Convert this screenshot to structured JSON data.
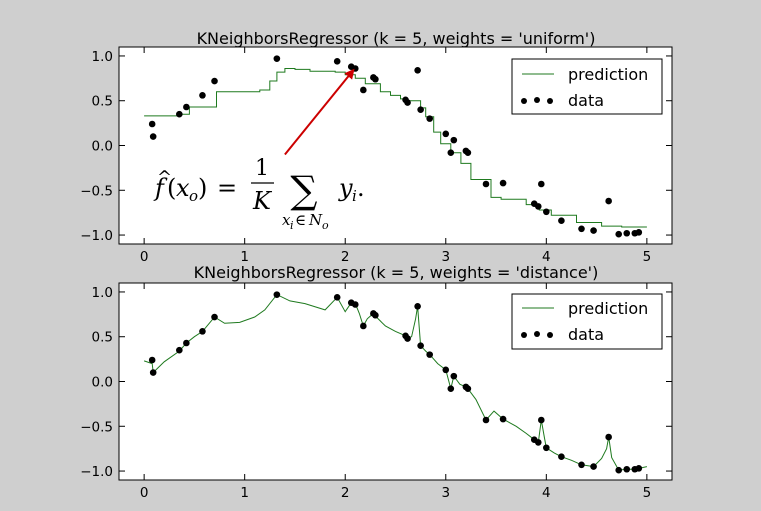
{
  "chart_data": [
    {
      "type": "line",
      "title": "KNeighborsRegressor (k = 5, weights = 'uniform')",
      "xlim": [
        -0.25,
        5.25
      ],
      "ylim": [
        -1.1,
        1.1
      ],
      "xticks": [
        0,
        1,
        2,
        3,
        4,
        5
      ],
      "xtick_labels": [
        "0",
        "1",
        "2",
        "3",
        "4",
        "5"
      ],
      "yticks": [
        1.0,
        0.5,
        0.0,
        -0.5,
        -1.0
      ],
      "ytick_labels": [
        "1.0",
        "0.5",
        "0.0",
        "−0.5",
        "−1.0"
      ],
      "grid": false,
      "legend_position": "top-right",
      "series": [
        {
          "name": "prediction",
          "kind": "step-line",
          "color": "#1f7a1f",
          "x": [
            0.0,
            0.35,
            0.35,
            0.45,
            0.45,
            0.72,
            0.72,
            1.15,
            1.15,
            1.25,
            1.25,
            1.32,
            1.32,
            1.4,
            1.4,
            1.5,
            1.5,
            1.65,
            1.65,
            1.9,
            1.9,
            2.0,
            2.0,
            2.1,
            2.1,
            2.2,
            2.2,
            2.35,
            2.35,
            2.45,
            2.45,
            2.55,
            2.55,
            2.6,
            2.6,
            2.75,
            2.75,
            2.8,
            2.8,
            2.88,
            2.88,
            2.95,
            2.95,
            3.05,
            3.05,
            3.15,
            3.15,
            3.25,
            3.25,
            3.45,
            3.45,
            3.55,
            3.55,
            3.8,
            3.8,
            3.93,
            3.93,
            4.05,
            4.05,
            4.3,
            4.3,
            4.55,
            4.55,
            4.75,
            4.75,
            5.0
          ],
          "y": [
            0.33,
            0.33,
            0.35,
            0.35,
            0.43,
            0.43,
            0.6,
            0.6,
            0.62,
            0.62,
            0.72,
            0.72,
            0.82,
            0.82,
            0.86,
            0.86,
            0.85,
            0.85,
            0.83,
            0.83,
            0.82,
            0.82,
            0.79,
            0.79,
            0.75,
            0.75,
            0.69,
            0.69,
            0.6,
            0.6,
            0.56,
            0.56,
            0.52,
            0.52,
            0.5,
            0.5,
            0.42,
            0.42,
            0.32,
            0.32,
            0.15,
            0.15,
            0.02,
            0.02,
            -0.08,
            -0.08,
            -0.2,
            -0.2,
            -0.38,
            -0.38,
            -0.58,
            -0.58,
            -0.6,
            -0.6,
            -0.66,
            -0.66,
            -0.72,
            -0.72,
            -0.78,
            -0.78,
            -0.86,
            -0.86,
            -0.9,
            -0.9,
            -0.91,
            -0.91
          ]
        },
        {
          "name": "data",
          "kind": "scatter",
          "color": "#000000",
          "x": [
            0.08,
            0.09,
            0.35,
            0.42,
            0.58,
            0.7,
            1.32,
            1.92,
            2.06,
            2.1,
            2.18,
            2.28,
            2.3,
            2.6,
            2.62,
            2.72,
            2.75,
            2.84,
            3.0,
            3.05,
            3.08,
            3.2,
            3.22,
            3.4,
            3.57,
            3.88,
            3.92,
            3.95,
            4.0,
            4.15,
            4.35,
            4.47,
            4.62,
            4.72,
            4.8,
            4.88,
            4.92
          ],
          "y": [
            0.24,
            0.1,
            0.35,
            0.43,
            0.56,
            0.72,
            0.97,
            0.94,
            0.88,
            0.86,
            0.62,
            0.76,
            0.74,
            0.51,
            0.48,
            0.84,
            0.4,
            0.3,
            0.13,
            -0.08,
            0.06,
            -0.06,
            -0.08,
            -0.43,
            -0.42,
            -0.65,
            -0.68,
            -0.43,
            -0.74,
            -0.84,
            -0.93,
            -0.95,
            -0.62,
            -0.99,
            -0.98,
            -0.98,
            -0.97
          ]
        }
      ],
      "annotation": {
        "formula": "f̂(xₒ) = (1/K) ∑ yᵢ.",
        "arrow_from": [
          1.4,
          -0.1
        ],
        "arrow_to": [
          2.08,
          0.84
        ],
        "arrow_color": "#cc0000"
      }
    },
    {
      "type": "line",
      "title": "KNeighborsRegressor (k = 5, weights = 'distance')",
      "xlim": [
        -0.25,
        5.25
      ],
      "ylim": [
        -1.1,
        1.1
      ],
      "xticks": [
        0,
        1,
        2,
        3,
        4,
        5
      ],
      "xtick_labels": [
        "0",
        "1",
        "2",
        "3",
        "4",
        "5"
      ],
      "yticks": [
        1.0,
        0.5,
        0.0,
        -0.5,
        -1.0
      ],
      "ytick_labels": [
        "1.0",
        "0.5",
        "0.0",
        "−0.5",
        "−1.0"
      ],
      "grid": false,
      "legend_position": "top-right",
      "series": [
        {
          "name": "prediction",
          "kind": "line",
          "color": "#1f7a1f",
          "x": [
            0.0,
            0.08,
            0.09,
            0.2,
            0.35,
            0.42,
            0.5,
            0.58,
            0.7,
            0.8,
            0.95,
            1.1,
            1.2,
            1.32,
            1.45,
            1.6,
            1.8,
            1.92,
            2.0,
            2.06,
            2.1,
            2.14,
            2.18,
            2.22,
            2.28,
            2.3,
            2.4,
            2.5,
            2.6,
            2.62,
            2.66,
            2.7,
            2.72,
            2.74,
            2.75,
            2.8,
            2.84,
            2.92,
            3.0,
            3.05,
            3.08,
            3.14,
            3.2,
            3.22,
            3.3,
            3.4,
            3.48,
            3.57,
            3.7,
            3.8,
            3.88,
            3.92,
            3.95,
            3.98,
            4.0,
            4.08,
            4.15,
            4.25,
            4.35,
            4.47,
            4.55,
            4.6,
            4.62,
            4.65,
            4.72,
            4.8,
            4.88,
            4.92,
            5.0
          ],
          "y": [
            0.23,
            0.2,
            0.1,
            0.22,
            0.34,
            0.43,
            0.5,
            0.56,
            0.72,
            0.65,
            0.66,
            0.72,
            0.8,
            0.97,
            0.9,
            0.87,
            0.8,
            0.94,
            0.78,
            0.88,
            0.87,
            0.76,
            0.62,
            0.7,
            0.76,
            0.73,
            0.62,
            0.56,
            0.51,
            0.48,
            0.5,
            0.7,
            0.84,
            0.55,
            0.4,
            0.34,
            0.3,
            0.2,
            0.13,
            -0.08,
            0.06,
            -0.03,
            -0.06,
            -0.08,
            -0.2,
            -0.43,
            -0.33,
            -0.42,
            -0.5,
            -0.58,
            -0.65,
            -0.68,
            -0.43,
            -0.62,
            -0.74,
            -0.8,
            -0.84,
            -0.88,
            -0.93,
            -0.95,
            -0.86,
            -0.75,
            -0.62,
            -0.85,
            -0.99,
            -0.98,
            -0.98,
            -0.97,
            -0.95
          ]
        },
        {
          "name": "data",
          "kind": "scatter",
          "color": "#000000",
          "x": [
            0.08,
            0.09,
            0.35,
            0.42,
            0.58,
            0.7,
            1.32,
            1.92,
            2.06,
            2.1,
            2.18,
            2.28,
            2.3,
            2.6,
            2.62,
            2.72,
            2.75,
            2.84,
            3.0,
            3.05,
            3.08,
            3.2,
            3.22,
            3.4,
            3.57,
            3.88,
            3.92,
            3.95,
            4.0,
            4.15,
            4.35,
            4.47,
            4.62,
            4.72,
            4.8,
            4.88,
            4.92
          ],
          "y": [
            0.24,
            0.1,
            0.35,
            0.43,
            0.56,
            0.72,
            0.97,
            0.94,
            0.88,
            0.86,
            0.62,
            0.76,
            0.74,
            0.51,
            0.48,
            0.84,
            0.4,
            0.3,
            0.13,
            -0.08,
            0.06,
            -0.06,
            -0.08,
            -0.43,
            -0.42,
            -0.65,
            -0.68,
            -0.43,
            -0.74,
            -0.84,
            -0.93,
            -0.95,
            -0.62,
            -0.99,
            -0.98,
            -0.98,
            -0.97
          ]
        }
      ]
    }
  ]
}
